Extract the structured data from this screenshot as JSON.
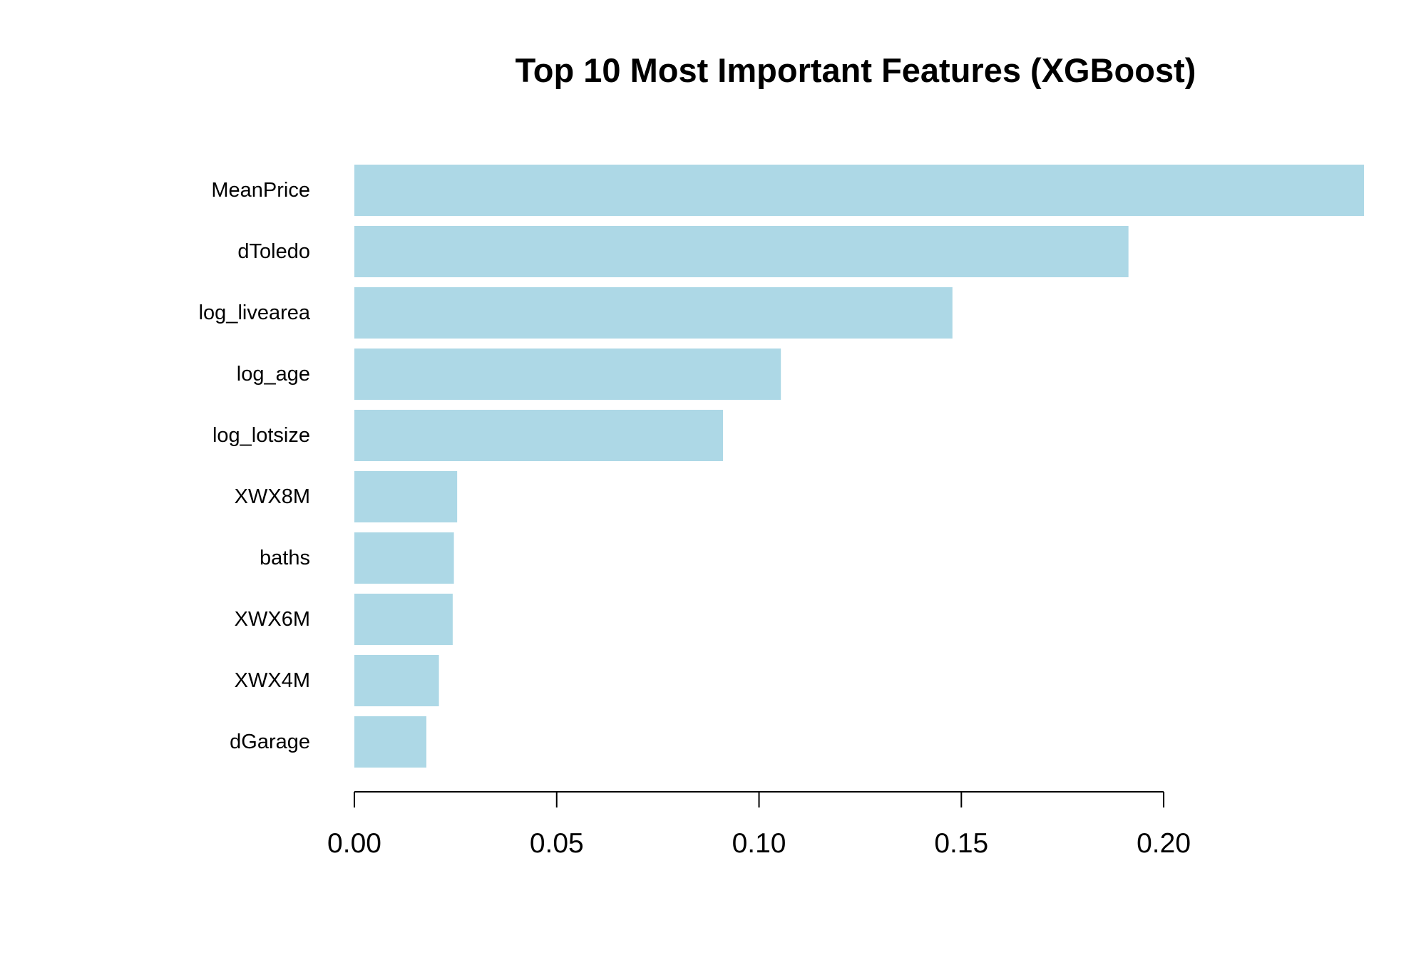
{
  "chart_data": {
    "type": "bar",
    "orientation": "horizontal",
    "title": "Top 10 Most Important Features (XGBoost)",
    "xlabel": "",
    "ylabel": "",
    "categories": [
      "MeanPrice",
      "dToledo",
      "log_livearea",
      "log_age",
      "log_lotsize",
      "XWX8M",
      "baths",
      "XWX6M",
      "XWX4M",
      "dGarage"
    ],
    "values": [
      0.2495,
      0.1913,
      0.1478,
      0.1054,
      0.0911,
      0.0254,
      0.0246,
      0.0243,
      0.0209,
      0.0178
    ],
    "xlim": [
      0,
      0.2495
    ],
    "xticks": [
      0.0,
      0.05,
      0.1,
      0.15,
      0.2
    ],
    "xtick_labels": [
      "0.00",
      "0.05",
      "0.10",
      "0.15",
      "0.20"
    ],
    "grid": false,
    "legend": "none",
    "bar_color": "#add8e6"
  }
}
